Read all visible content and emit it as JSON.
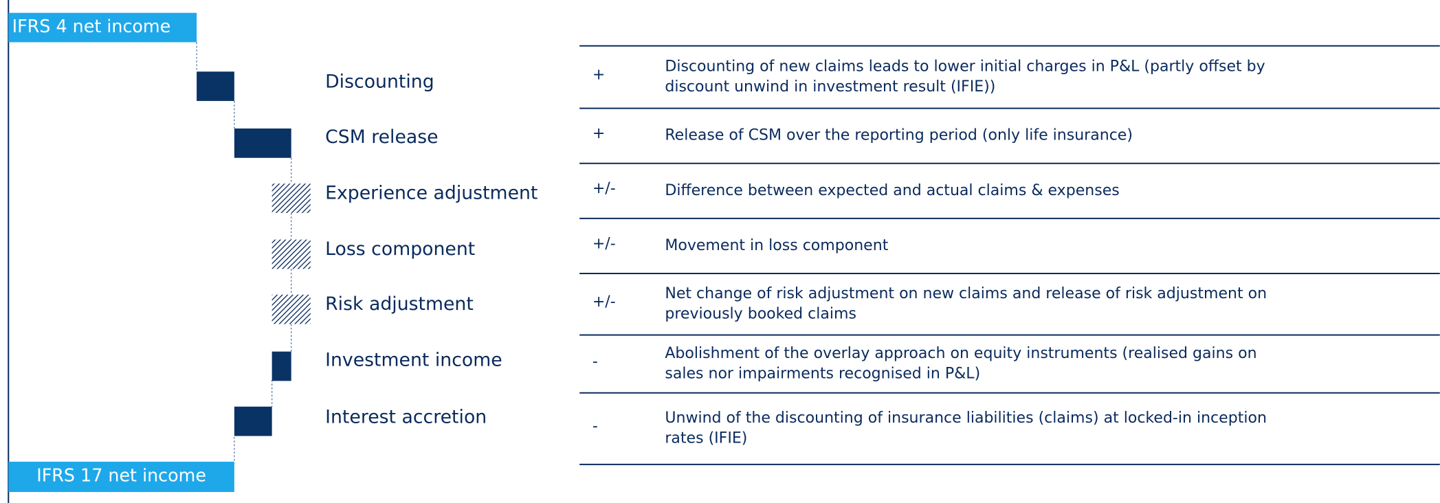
{
  "start": {
    "label": "IFRS 4 net income"
  },
  "end": {
    "label": "IFRS 17 net income"
  },
  "items": [
    {
      "label": "Discounting",
      "sign": "+",
      "description": [
        "Discounting of new claims leads to lower initial charges in P&L (partly offset by",
        "discount unwind in investment result (IFIE))"
      ]
    },
    {
      "label": "CSM release",
      "sign": "+",
      "description": [
        "Release of CSM over the reporting period (only life insurance)"
      ]
    },
    {
      "label": "Experience adjustment",
      "sign": "+/-",
      "description": [
        "Difference between expected and actual claims & expenses"
      ]
    },
    {
      "label": "Loss component",
      "sign": "+/-",
      "description": [
        "Movement in loss component"
      ]
    },
    {
      "label": "Risk adjustment",
      "sign": "+/-",
      "description": [
        "Net change of risk adjustment on new claims and release of risk adjustment on",
        "previously booked claims"
      ]
    },
    {
      "label": "Investment income",
      "sign": "-",
      "description": [
        "Abolishment of the overlay approach on equity instruments (realised gains on",
        "sales nor impairments recognised in P&L)"
      ]
    },
    {
      "label": "Interest accretion",
      "sign": "-",
      "description": [
        "Unwind of the discounting of insurance liabilities (claims) at locked-in inception",
        "rates (IFIE)"
      ]
    }
  ]
}
